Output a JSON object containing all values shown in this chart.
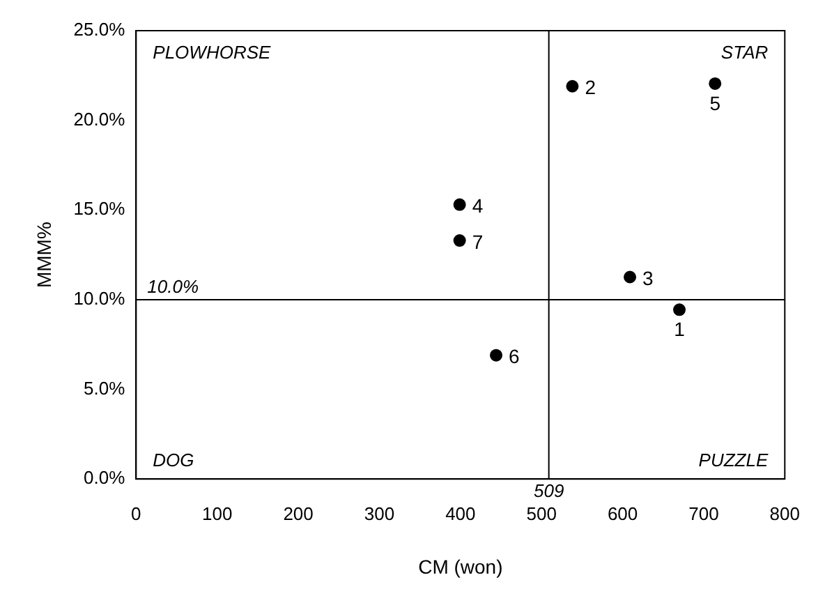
{
  "chart_data": {
    "type": "scatter",
    "xlabel": "CM (won)",
    "ylabel": "MMM%",
    "x": [
      670,
      538,
      609,
      399,
      714,
      444,
      399
    ],
    "values": [
      9.44,
      21.9,
      11.26,
      15.3,
      22.05,
      6.9,
      13.3
    ],
    "color": "#000000",
    "marker": "circle",
    "xlim": [
      0,
      800
    ],
    "xticks": [
      0,
      100,
      200,
      300,
      400,
      500,
      600,
      700,
      800
    ],
    "ylim": [
      0,
      25
    ],
    "yticks": [
      {
        "value": 0,
        "label": "0.0%"
      },
      {
        "value": 5,
        "label": "5.0%"
      },
      {
        "value": 10,
        "label": "10.0%"
      },
      {
        "value": 15,
        "label": "15.0%"
      },
      {
        "value": 20,
        "label": "20.0%"
      },
      {
        "value": 25,
        "label": "25.0%"
      }
    ],
    "grid": false,
    "legend": false,
    "ref_lines": [
      {
        "axis": "x",
        "value": 509,
        "label": "509"
      },
      {
        "axis": "y",
        "value": 10,
        "label": "10.0%"
      }
    ],
    "annotations": [
      "PLOWHORSE",
      "STAR",
      "DOG",
      "PUZZLE",
      {
        "text": "1",
        "x": 670,
        "y": 9.44
      },
      {
        "text": "2",
        "x": 538,
        "y": 21.9
      },
      {
        "text": "3",
        "x": 609,
        "y": 11.26
      },
      {
        "text": "4",
        "x": 399,
        "y": 15.3
      },
      {
        "text": "5",
        "x": 714,
        "y": 22.05
      },
      {
        "text": "6",
        "x": 444,
        "y": 6.9
      },
      {
        "text": "7",
        "x": 399,
        "y": 13.3
      }
    ]
  }
}
